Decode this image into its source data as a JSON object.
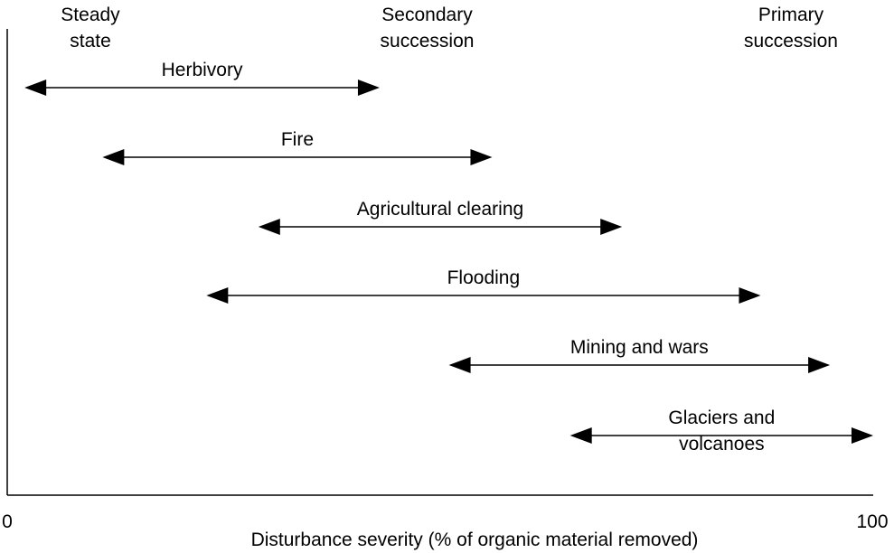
{
  "regimes": {
    "steady": [
      "Steady",
      "state"
    ],
    "secondary": [
      "Secondary",
      "succession"
    ],
    "primary": [
      "Primary",
      "succession"
    ]
  },
  "axis": {
    "label": "Disturbance severity (% of organic material removed)",
    "min_label": "0",
    "max_label": "100"
  },
  "disturbances": [
    {
      "label": [
        "Herbivory"
      ],
      "range": [
        2,
        43
      ]
    },
    {
      "label": [
        "Fire"
      ],
      "range": [
        11,
        56
      ]
    },
    {
      "label": [
        "Agricultural clearing"
      ],
      "range": [
        29,
        71
      ]
    },
    {
      "label": [
        "Flooding"
      ],
      "range": [
        23,
        87
      ]
    },
    {
      "label": [
        "Mining and wars"
      ],
      "range": [
        51,
        95
      ]
    },
    {
      "label": [
        "Glaciers and",
        "volcanoes"
      ],
      "range": [
        65,
        100
      ]
    }
  ],
  "colors": {
    "ink": "#000000",
    "background": "#ffffff"
  }
}
